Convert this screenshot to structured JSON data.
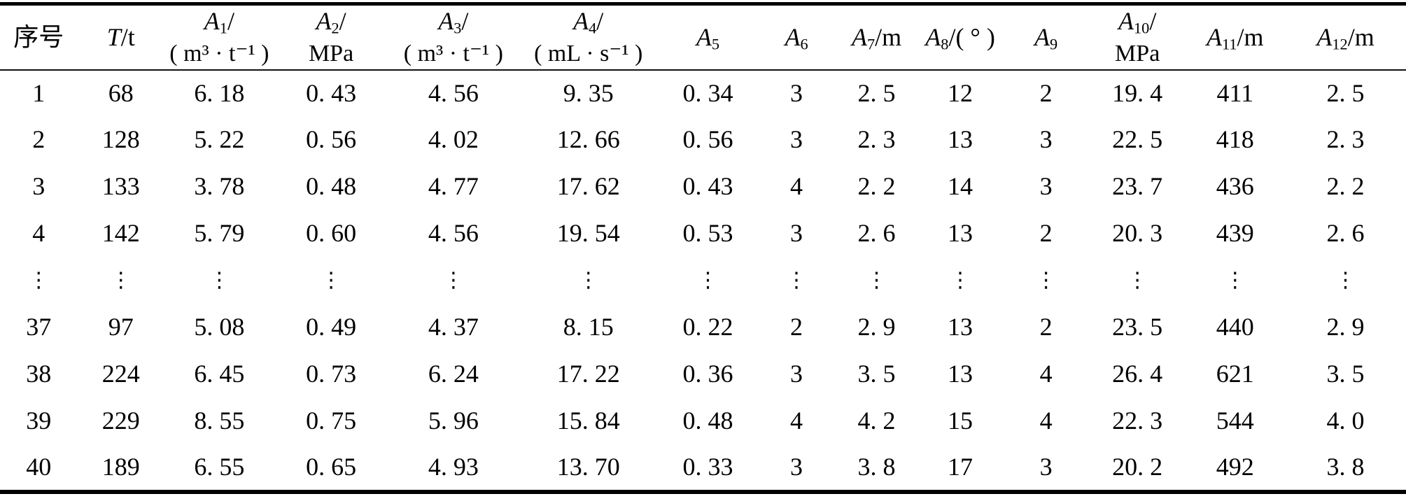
{
  "table": {
    "columns": [
      {
        "key": "xuhao",
        "line1": {
          "text": "序号"
        }
      },
      {
        "key": "T",
        "line1": {
          "var": "T",
          "suffix": "/t"
        }
      },
      {
        "key": "A1",
        "line1": {
          "var": "A",
          "sub": "1",
          "suffix": "/"
        },
        "line2": "( m³ · t⁻¹ )"
      },
      {
        "key": "A2",
        "line1": {
          "var": "A",
          "sub": "2",
          "suffix": "/"
        },
        "line2": "MPa"
      },
      {
        "key": "A3",
        "line1": {
          "var": "A",
          "sub": "3",
          "suffix": "/"
        },
        "line2": "( m³ · t⁻¹ )"
      },
      {
        "key": "A4",
        "line1": {
          "var": "A",
          "sub": "4",
          "suffix": "/"
        },
        "line2": "( mL · s⁻¹ )"
      },
      {
        "key": "A5",
        "line1": {
          "var": "A",
          "sub": "5"
        }
      },
      {
        "key": "A6",
        "line1": {
          "var": "A",
          "sub": "6"
        }
      },
      {
        "key": "A7",
        "line1": {
          "var": "A",
          "sub": "7",
          "suffix": "/m"
        }
      },
      {
        "key": "A8",
        "line1": {
          "var": "A",
          "sub": "8",
          "suffix": "/( ° )"
        }
      },
      {
        "key": "A9",
        "line1": {
          "var": "A",
          "sub": "9"
        }
      },
      {
        "key": "A10",
        "line1": {
          "var": "A",
          "sub": "10",
          "suffix": "/"
        },
        "line2": "MPa"
      },
      {
        "key": "A11",
        "line1": {
          "var": "A",
          "sub": "11",
          "suffix": "/m"
        }
      },
      {
        "key": "A12",
        "line1": {
          "var": "A",
          "sub": "12",
          "suffix": "/m"
        }
      }
    ],
    "rows": [
      [
        "1",
        "68",
        "6. 18",
        "0. 43",
        "4. 56",
        "9. 35",
        "0. 34",
        "3",
        "2. 5",
        "12",
        "2",
        "19. 4",
        "411",
        "2. 5"
      ],
      [
        "2",
        "128",
        "5. 22",
        "0. 56",
        "4. 02",
        "12. 66",
        "0. 56",
        "3",
        "2. 3",
        "13",
        "3",
        "22. 5",
        "418",
        "2. 3"
      ],
      [
        "3",
        "133",
        "3. 78",
        "0. 48",
        "4. 77",
        "17. 62",
        "0. 43",
        "4",
        "2. 2",
        "14",
        "3",
        "23. 7",
        "436",
        "2. 2"
      ],
      [
        "4",
        "142",
        "5. 79",
        "0. 60",
        "4. 56",
        "19. 54",
        "0. 53",
        "3",
        "2. 6",
        "13",
        "2",
        "20. 3",
        "439",
        "2. 6"
      ],
      [
        "⋮",
        "⋮",
        "⋮",
        "⋮",
        "⋮",
        "⋮",
        "⋮",
        "⋮",
        "⋮",
        "⋮",
        "⋮",
        "⋮",
        "⋮",
        "⋮"
      ],
      [
        "37",
        "97",
        "5. 08",
        "0. 49",
        "4. 37",
        "8. 15",
        "0. 22",
        "2",
        "2. 9",
        "13",
        "2",
        "23. 5",
        "440",
        "2. 9"
      ],
      [
        "38",
        "224",
        "6. 45",
        "0. 73",
        "6. 24",
        "17. 22",
        "0. 36",
        "3",
        "3. 5",
        "13",
        "4",
        "26. 4",
        "621",
        "3. 5"
      ],
      [
        "39",
        "229",
        "8. 55",
        "0. 75",
        "5. 96",
        "15. 84",
        "0. 48",
        "4",
        "4. 2",
        "15",
        "4",
        "22. 3",
        "544",
        "4. 0"
      ],
      [
        "40",
        "189",
        "6. 55",
        "0. 65",
        "4. 93",
        "13. 70",
        "0. 33",
        "3",
        "3. 8",
        "17",
        "3",
        "20. 2",
        "492",
        "3. 8"
      ]
    ]
  }
}
